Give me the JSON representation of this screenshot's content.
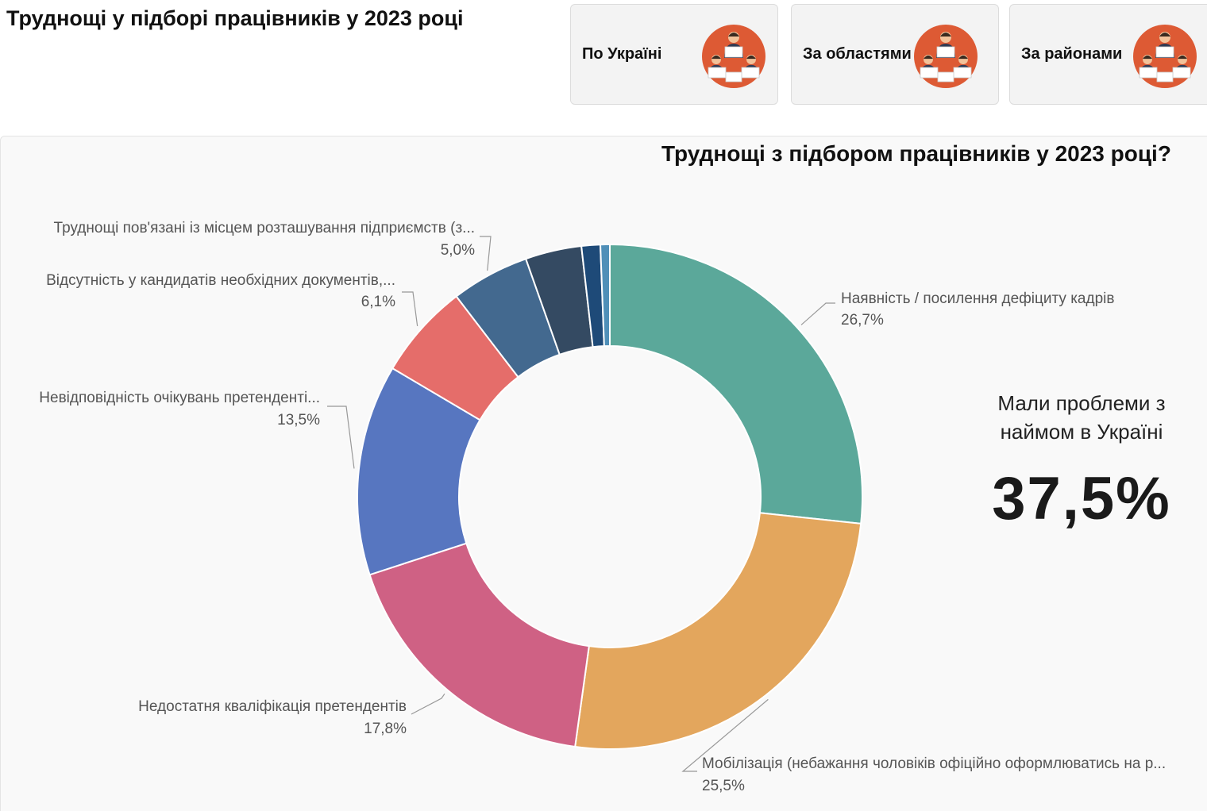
{
  "header": {
    "title": "Труднощі у підборі працівників у 2023 році"
  },
  "nav": {
    "cards": [
      {
        "label": "По Україні",
        "icon": "people-meeting-icon"
      },
      {
        "label": "За областями",
        "icon": "people-meeting-icon"
      },
      {
        "label": "За районами",
        "icon": "people-meeting-icon"
      }
    ]
  },
  "colors": {
    "icon_circle": "#dd5a34",
    "icon_suit": "#2f3b55",
    "icon_skin": "#f2c29a",
    "icon_hair": "#3a2a20"
  },
  "kpi": {
    "label": "Мали проблеми з наймом в Україні",
    "value": "37,5%"
  },
  "chart_data": {
    "type": "donut",
    "title": "Труднощі з підбором працівників у 2023 році?",
    "slices": [
      {
        "label": "Наявність / посилення дефіциту кадрів",
        "value": 26.7,
        "value_label": "26,7%",
        "color": "#5ba89a"
      },
      {
        "label": "Мобілізація (небажання чоловіків офіційно оформлюватись на р...",
        "value": 25.5,
        "value_label": "25,5%",
        "color": "#e3a65d"
      },
      {
        "label": "Недостатня кваліфікація претендентів",
        "value": 17.8,
        "value_label": "17,8%",
        "color": "#cf6184"
      },
      {
        "label": "Невідповідність очікувань претенденті...",
        "value": 13.5,
        "value_label": "13,5%",
        "color": "#5776c0"
      },
      {
        "label": "Відсутність у кандидатів необхідних документів,...",
        "value": 6.1,
        "value_label": "6,1%",
        "color": "#e56d6a"
      },
      {
        "label": "Труднощі пов'язані із місцем розташування підприємств (з...",
        "value": 5.0,
        "value_label": "5,0%",
        "color": "#43698f"
      },
      {
        "label": "",
        "value": 3.6,
        "value_label": "",
        "color": "#344a62"
      },
      {
        "label": "",
        "value": 1.2,
        "value_label": "",
        "color": "#1e4a78"
      },
      {
        "label": "",
        "value": 0.6,
        "value_label": "",
        "color": "#4f8fb8"
      }
    ]
  }
}
